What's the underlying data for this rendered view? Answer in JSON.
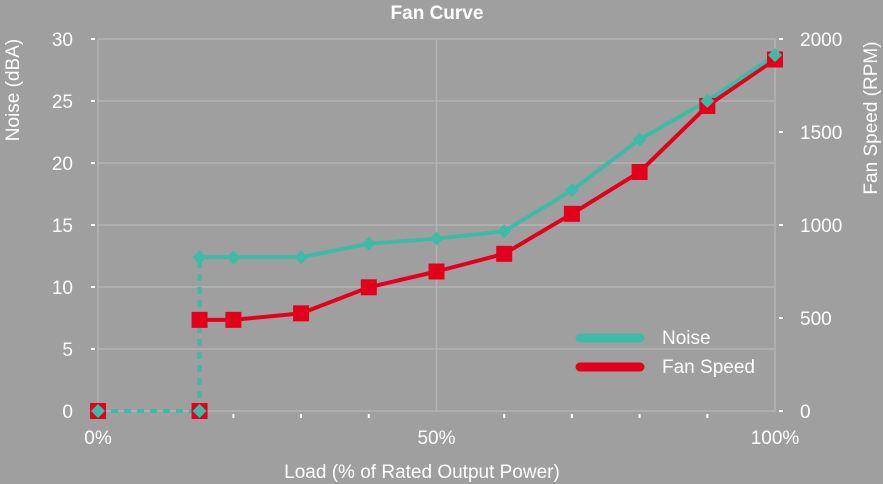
{
  "chart_data": {
    "type": "line",
    "title": "Fan Curve",
    "xlabel": "Load (% of Rated Output Power)",
    "ylabel_left": "Noise (dBA)",
    "ylabel_right": "Fan Speed (RPM)",
    "xlim": [
      0,
      100
    ],
    "ylim_left": [
      0,
      30
    ],
    "ylim_right": [
      0,
      2000
    ],
    "x_ticks": [
      {
        "value": 0,
        "label": "0%"
      },
      {
        "value": 50,
        "label": "50%"
      },
      {
        "value": 100,
        "label": "100%"
      }
    ],
    "minor_x_ticks": [
      20,
      30,
      40,
      60,
      70,
      80,
      90
    ],
    "y_left_ticks": [
      0,
      5,
      10,
      15,
      20,
      25,
      30
    ],
    "y_right_ticks": [
      0,
      500,
      1000,
      1500,
      2000
    ],
    "grid": true,
    "legend_position": "bottom-right",
    "colors": {
      "background": "#9f9f9f",
      "grid": "#b3b3b3",
      "noise": "#3ebba5",
      "fan_speed": "#e3001b"
    },
    "series": [
      {
        "name": "Noise",
        "axis": "left",
        "marker": "diamond",
        "dashed_segments": [
          [
            0,
            1
          ],
          [
            1,
            2
          ]
        ],
        "points": [
          {
            "x": 0,
            "y": 0
          },
          {
            "x": 15,
            "y": 0
          },
          {
            "x": 15,
            "y": 12.4
          },
          {
            "x": 20,
            "y": 12.4
          },
          {
            "x": 30,
            "y": 12.4
          },
          {
            "x": 40,
            "y": 13.5
          },
          {
            "x": 50,
            "y": 13.9
          },
          {
            "x": 60,
            "y": 14.5
          },
          {
            "x": 70,
            "y": 17.8
          },
          {
            "x": 80,
            "y": 21.9
          },
          {
            "x": 90,
            "y": 25.0
          },
          {
            "x": 100,
            "y": 28.7
          }
        ]
      },
      {
        "name": "Fan Speed",
        "axis": "right",
        "marker": "square",
        "dashed_segments": [
          [
            0,
            1
          ],
          [
            1,
            2
          ]
        ],
        "points": [
          {
            "x": 0,
            "y": 0
          },
          {
            "x": 15,
            "y": 0
          },
          {
            "x": 15,
            "y": 490
          },
          {
            "x": 20,
            "y": 490
          },
          {
            "x": 30,
            "y": 525
          },
          {
            "x": 40,
            "y": 665
          },
          {
            "x": 50,
            "y": 750
          },
          {
            "x": 60,
            "y": 845
          },
          {
            "x": 70,
            "y": 1060
          },
          {
            "x": 80,
            "y": 1285
          },
          {
            "x": 90,
            "y": 1640
          },
          {
            "x": 100,
            "y": 1890
          }
        ]
      }
    ]
  }
}
